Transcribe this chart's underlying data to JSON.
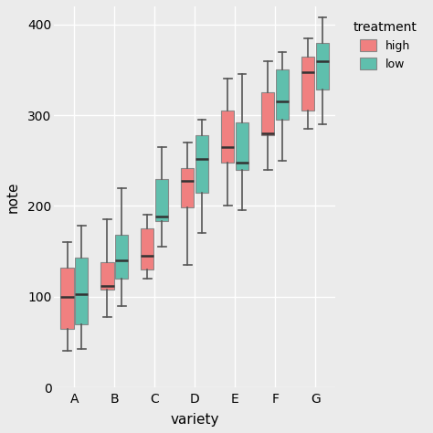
{
  "varieties": [
    "A",
    "B",
    "C",
    "D",
    "E",
    "F",
    "G"
  ],
  "high": {
    "A": {
      "whislo": 40,
      "q1": 65,
      "med": 100,
      "q3": 132,
      "whishi": 160
    },
    "B": {
      "whislo": 78,
      "q1": 108,
      "med": 112,
      "q3": 138,
      "whishi": 185
    },
    "C": {
      "whislo": 120,
      "q1": 130,
      "med": 145,
      "q3": 175,
      "whishi": 190
    },
    "D": {
      "whislo": 135,
      "q1": 198,
      "med": 228,
      "q3": 242,
      "whishi": 270
    },
    "E": {
      "whislo": 200,
      "q1": 248,
      "med": 265,
      "q3": 305,
      "whishi": 340
    },
    "F": {
      "whislo": 240,
      "q1": 278,
      "med": 280,
      "q3": 325,
      "whishi": 360
    },
    "G": {
      "whislo": 285,
      "q1": 305,
      "med": 347,
      "q3": 365,
      "whishi": 385
    }
  },
  "low": {
    "A": {
      "whislo": 42,
      "q1": 70,
      "med": 103,
      "q3": 143,
      "whishi": 178
    },
    "B": {
      "whislo": 90,
      "q1": 120,
      "med": 140,
      "q3": 168,
      "whishi": 220
    },
    "C": {
      "whislo": 155,
      "q1": 183,
      "med": 188,
      "q3": 230,
      "whishi": 265
    },
    "D": {
      "whislo": 170,
      "q1": 215,
      "med": 252,
      "q3": 278,
      "whishi": 295
    },
    "E": {
      "whislo": 195,
      "q1": 240,
      "med": 248,
      "q3": 292,
      "whishi": 345
    },
    "F": {
      "whislo": 250,
      "q1": 295,
      "med": 315,
      "q3": 350,
      "whishi": 370
    },
    "G": {
      "whislo": 290,
      "q1": 328,
      "med": 360,
      "q3": 380,
      "whishi": 408
    }
  },
  "high_color": "#F08080",
  "low_color": "#5FBFAD",
  "bg_color": "#EBEBEB",
  "panel_bg": "#EBEBEB",
  "grid_color": "#FFFFFF",
  "ylabel": "note",
  "xlabel": "variety",
  "legend_title": "treatment",
  "ylim": [
    0,
    420
  ],
  "yticks": [
    0,
    100,
    200,
    300,
    400
  ]
}
